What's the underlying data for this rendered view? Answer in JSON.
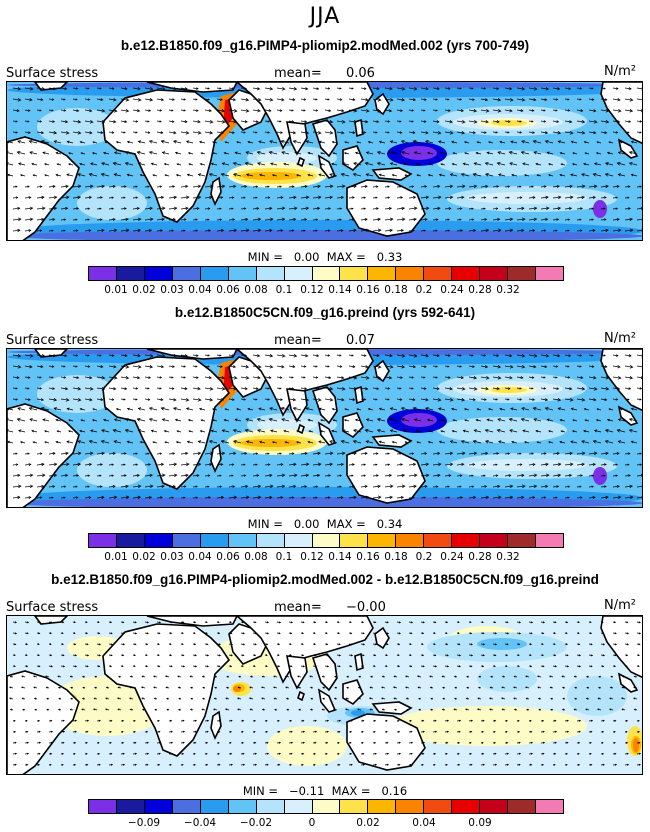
{
  "season": "JJA",
  "colors": [
    "#7b2fe6",
    "#1a1a9e",
    "#0000d8",
    "#4b6ee0",
    "#2a9cf0",
    "#62c4f6",
    "#b4e4fb",
    "#d8f0fd",
    "#fdfcc6",
    "#fde24a",
    "#fcb500",
    "#fa8400",
    "#f24b12",
    "#e60000",
    "#c4001a",
    "#9e2a2a",
    "#f47ab4"
  ],
  "panels": [
    {
      "title": "b.e12.B1850.f09_g16.PIMP4-pliomip2.modMed.002 (yrs 700-749)",
      "variable": "Surface stress",
      "mean_label": "mean=",
      "mean_value": "0.06",
      "units": "N/m²",
      "min_label": "MIN =",
      "min_value": "0.00",
      "max_label": "MAX =",
      "max_value": "0.33",
      "cbar_ticks": [
        "0.01",
        "0.02",
        "0.03",
        "0.04",
        "0.06",
        "0.08",
        "0.1",
        "0.12",
        "0.14",
        "0.16",
        "0.18",
        "0.2",
        "0.24",
        "0.28",
        "0.32"
      ]
    },
    {
      "title": "b.e12.B1850C5CN.f09_g16.preind (yrs 592-641)",
      "variable": "Surface stress",
      "mean_label": "mean=",
      "mean_value": "0.07",
      "units": "N/m²",
      "min_label": "MIN =",
      "min_value": "0.00",
      "max_label": "MAX =",
      "max_value": "0.34",
      "cbar_ticks": [
        "0.01",
        "0.02",
        "0.03",
        "0.04",
        "0.06",
        "0.08",
        "0.1",
        "0.12",
        "0.14",
        "0.16",
        "0.18",
        "0.2",
        "0.24",
        "0.28",
        "0.32"
      ]
    },
    {
      "title": "b.e12.B1850.f09_g16.PIMP4-pliomip2.modMed.002 - b.e12.B1850C5CN.f09_g16.preind",
      "variable": "Surface stress",
      "mean_label": "mean=",
      "mean_value": "−0.00",
      "units": "N/m²",
      "min_label": "MIN =",
      "min_value": "−0.11",
      "max_label": "MAX =",
      "max_value": "0.16",
      "cbar_ticks": [
        "−0.09",
        "−0.04",
        "−0.02",
        "0",
        "0.02",
        "0.04",
        "0.09"
      ]
    }
  ]
}
